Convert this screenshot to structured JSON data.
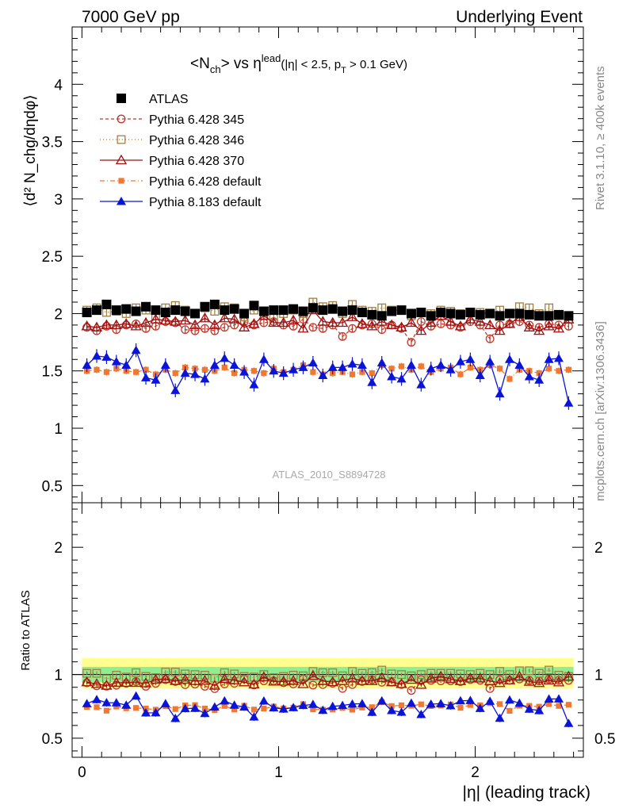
{
  "header": {
    "left": "7000 GeV pp",
    "right": "Underlying Event"
  },
  "side_labels": {
    "rivet": "Rivet 3.1.10, ≥ 400k events",
    "mcplots": "mcplots.cern.ch [arXiv:1306.3436]"
  },
  "watermark": "ATLAS_2010_S8894728",
  "chart_data": {
    "type": "scatter",
    "title": "<N_ch> vs η^lead (|η| < 2.5, p_T > 0.1 GeV)",
    "title_parts": {
      "main": "<N",
      "main_sub": "ch",
      "vs": "> vs η",
      "vs_sup": "lead",
      "cut_a": "(|η| < 2.5, p",
      "cut_sub": "T",
      "cut_b": " > 0.1 GeV)"
    },
    "ylabel_main": "⟨d² N_chg/dηdφ⟩",
    "ylabel_ratio": "Ratio to ATLAS",
    "xlabel": "|η| (leading track)",
    "xlim": [
      -0.05,
      2.55
    ],
    "ylim_main": [
      0.35,
      4.5
    ],
    "ylim_ratio": [
      0.35,
      2.35
    ],
    "xticks": [
      "0",
      "1",
      "2"
    ],
    "yticks_main": [
      "0.5",
      "1",
      "1.5",
      "2",
      "2.5",
      "3",
      "3.5",
      "4"
    ],
    "yticks_ratio": [
      "0.5",
      "1",
      "2"
    ],
    "x": [
      0.025,
      0.075,
      0.125,
      0.175,
      0.225,
      0.275,
      0.325,
      0.375,
      0.425,
      0.475,
      0.525,
      0.575,
      0.625,
      0.675,
      0.725,
      0.775,
      0.825,
      0.875,
      0.925,
      0.975,
      1.025,
      1.075,
      1.125,
      1.175,
      1.225,
      1.275,
      1.325,
      1.375,
      1.425,
      1.475,
      1.525,
      1.575,
      1.625,
      1.675,
      1.725,
      1.775,
      1.825,
      1.875,
      1.925,
      1.975,
      2.025,
      2.075,
      2.125,
      2.175,
      2.225,
      2.275,
      2.325,
      2.375,
      2.425,
      2.475
    ],
    "series": [
      {
        "name": "ATLAS",
        "values": [
          2.01,
          2.03,
          2.08,
          2.03,
          2.04,
          2.02,
          2.06,
          2.03,
          2.01,
          2.03,
          2.02,
          2.0,
          2.06,
          2.08,
          2.03,
          2.04,
          2.0,
          2.07,
          2.02,
          2.03,
          2.03,
          2.04,
          2.02,
          2.05,
          2.03,
          2.04,
          2.02,
          2.03,
          2.01,
          1.99,
          1.98,
          2.02,
          2.03,
          2.0,
          2.01,
          1.98,
          2.01,
          2.0,
          1.99,
          2.01,
          1.99,
          2.0,
          1.98,
          2.0,
          2.0,
          1.99,
          1.98,
          1.98,
          1.99,
          1.98
        ]
      },
      {
        "name": "Pythia 6.428 345",
        "values": [
          1.88,
          1.85,
          1.89,
          1.86,
          1.9,
          1.91,
          1.87,
          1.89,
          1.93,
          1.92,
          1.86,
          1.85,
          1.87,
          1.85,
          1.88,
          1.9,
          1.93,
          1.9,
          1.92,
          1.93,
          1.9,
          1.89,
          1.95,
          1.88,
          1.87,
          1.9,
          1.8,
          1.87,
          1.9,
          1.91,
          1.86,
          1.9,
          1.87,
          1.75,
          1.93,
          1.89,
          1.91,
          1.9,
          1.88,
          1.93,
          1.9,
          1.78,
          1.9,
          1.91,
          1.93,
          1.9,
          1.88,
          1.91,
          1.9,
          1.89
        ]
      },
      {
        "name": "Pythia 6.428 346",
        "values": [
          2.03,
          2.05,
          2.01,
          2.02,
          2.0,
          2.05,
          2.03,
          1.98,
          2.05,
          2.07,
          2.03,
          2.0,
          2.05,
          2.02,
          2.06,
          2.05,
          1.97,
          2.03,
          2.02,
          1.98,
          2.0,
          2.03,
          2.0,
          2.1,
          2.06,
          2.07,
          2.0,
          2.08,
          2.03,
          2.02,
          2.05,
          2.03,
          2.03,
          1.98,
          2.01,
          2.0,
          2.03,
          2.02,
          2.0,
          2.01,
          2.01,
          2.0,
          2.03,
          2.0,
          2.06,
          2.05,
          2.0,
          2.05,
          1.98,
          1.95
        ]
      },
      {
        "name": "Pythia 6.428 370",
        "values": [
          1.89,
          1.88,
          1.9,
          1.9,
          1.91,
          1.89,
          1.92,
          1.95,
          1.94,
          1.93,
          1.94,
          1.9,
          1.96,
          1.9,
          1.96,
          1.95,
          1.88,
          1.91,
          1.98,
          1.92,
          1.92,
          1.94,
          1.87,
          2.03,
          1.93,
          1.92,
          1.92,
          1.97,
          1.91,
          1.89,
          1.93,
          1.9,
          1.88,
          1.92,
          1.85,
          1.92,
          1.98,
          1.93,
          1.89,
          1.95,
          1.93,
          1.9,
          1.85,
          1.91,
          1.97,
          1.88,
          1.85,
          1.89,
          1.87,
          1.95
        ]
      },
      {
        "name": "Pythia 6.428 default",
        "values": [
          1.5,
          1.51,
          1.49,
          1.52,
          1.5,
          1.49,
          1.51,
          1.47,
          1.51,
          1.48,
          1.53,
          1.52,
          1.51,
          1.5,
          1.53,
          1.48,
          1.51,
          1.5,
          1.48,
          1.52,
          1.49,
          1.51,
          1.55,
          1.49,
          1.47,
          1.48,
          1.49,
          1.47,
          1.49,
          1.48,
          1.55,
          1.52,
          1.54,
          1.51,
          1.54,
          1.49,
          1.52,
          1.53,
          1.47,
          1.53,
          1.51,
          1.55,
          1.52,
          1.43,
          1.51,
          1.5,
          1.48,
          1.52,
          1.5,
          1.51
        ]
      },
      {
        "name": "Pythia 8.183 default",
        "values": [
          1.55,
          1.63,
          1.62,
          1.58,
          1.55,
          1.68,
          1.44,
          1.42,
          1.55,
          1.33,
          1.48,
          1.47,
          1.43,
          1.55,
          1.61,
          1.55,
          1.49,
          1.38,
          1.6,
          1.5,
          1.48,
          1.51,
          1.53,
          1.57,
          1.46,
          1.53,
          1.53,
          1.56,
          1.55,
          1.4,
          1.57,
          1.45,
          1.43,
          1.55,
          1.38,
          1.52,
          1.55,
          1.51,
          1.58,
          1.6,
          1.46,
          1.58,
          1.3,
          1.6,
          1.55,
          1.45,
          1.42,
          1.6,
          1.61,
          1.22
        ]
      }
    ],
    "legend_position": "top-left"
  },
  "style": {
    "atlas": "#000000",
    "p345": "#c0392b",
    "p346": "#a08040",
    "p370": "#a01010",
    "pdef6": "#f07830",
    "p8": "#0a14d8",
    "band_inner": "#90ee90",
    "band_outer": "#ffff90"
  }
}
